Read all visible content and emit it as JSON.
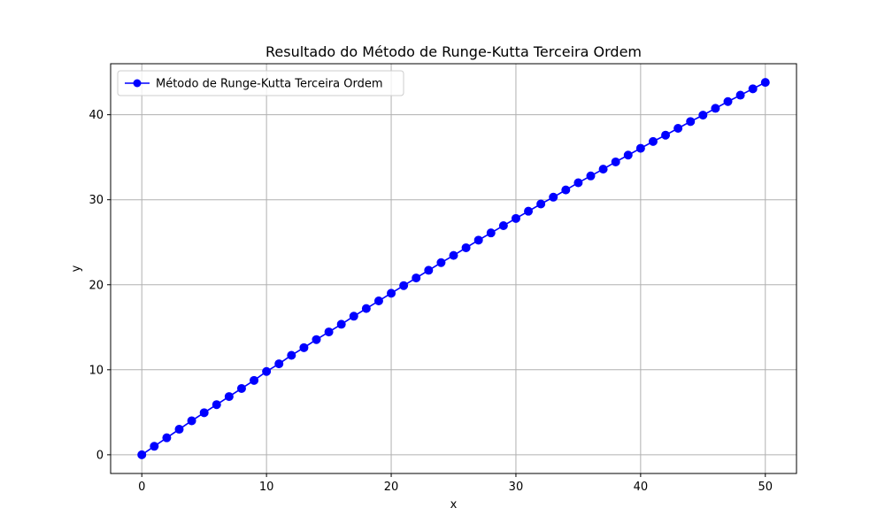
{
  "chart_data": {
    "type": "line",
    "title": "Resultado do Método de Runge-Kutta Terceira Ordem",
    "xlabel": "x",
    "ylabel": "y",
    "xlim": [
      -2.5,
      52.5
    ],
    "ylim": [
      -2.2,
      46.0
    ],
    "xticks": [
      0,
      10,
      20,
      30,
      40,
      50
    ],
    "yticks": [
      0,
      10,
      20,
      30,
      40
    ],
    "grid": true,
    "legend": "upper-left",
    "colors": {
      "line": "#0000ff",
      "marker": "#0000ff",
      "grid": "#b0b0b0"
    },
    "series": [
      {
        "name": "Método de Runge-Kutta Terceira Ordem",
        "marker": "circle",
        "x": [
          0,
          1,
          2,
          3,
          4,
          5,
          6,
          7,
          8,
          9,
          10,
          11,
          12,
          13,
          14,
          15,
          16,
          17,
          18,
          19,
          20,
          21,
          22,
          23,
          24,
          25,
          26,
          27,
          28,
          29,
          30,
          31,
          32,
          33,
          34,
          35,
          36,
          37,
          38,
          39,
          40,
          41,
          42,
          43,
          44,
          45,
          46,
          47,
          48,
          49,
          50
        ],
        "y": [
          0.0,
          1.0,
          2.0,
          3.0,
          4.0,
          4.95,
          5.9,
          6.85,
          7.8,
          8.75,
          9.8,
          10.7,
          11.7,
          12.6,
          13.55,
          14.45,
          15.35,
          16.3,
          17.2,
          18.1,
          19.0,
          19.9,
          20.8,
          21.7,
          22.6,
          23.45,
          24.35,
          25.25,
          26.1,
          26.95,
          27.8,
          28.65,
          29.5,
          30.3,
          31.15,
          32.0,
          32.8,
          33.6,
          34.45,
          35.25,
          36.05,
          36.85,
          37.6,
          38.4,
          39.2,
          39.95,
          40.75,
          41.55,
          42.3,
          43.05,
          43.8
        ]
      }
    ]
  }
}
